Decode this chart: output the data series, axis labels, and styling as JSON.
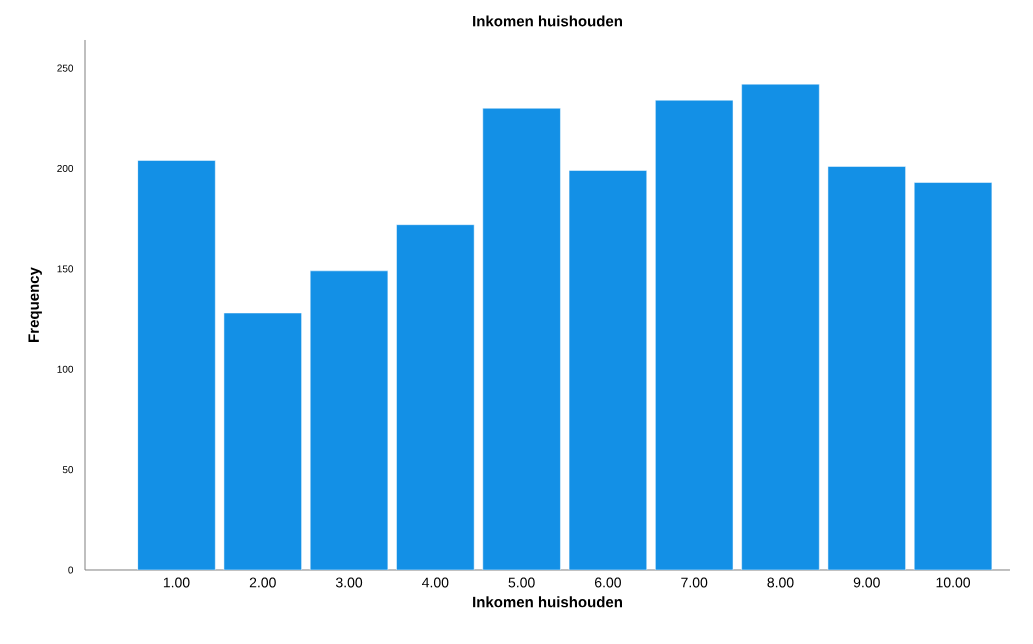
{
  "chart_data": {
    "type": "bar",
    "title": "Inkomen huishouden",
    "xlabel": "Inkomen huishouden",
    "ylabel": "Frequency",
    "categories": [
      "1.00",
      "2.00",
      "3.00",
      "4.00",
      "5.00",
      "6.00",
      "7.00",
      "8.00",
      "9.00",
      "10.00"
    ],
    "values": [
      204,
      128,
      149,
      172,
      230,
      199,
      234,
      242,
      201,
      193
    ],
    "color": "#1390e6",
    "ylim": [
      0,
      264
    ],
    "yticks": [
      0,
      50,
      100,
      150,
      200,
      250
    ]
  }
}
